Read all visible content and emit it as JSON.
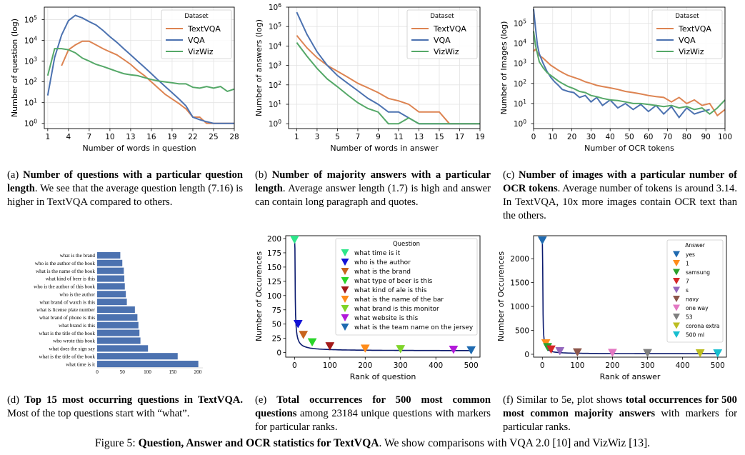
{
  "figure_caption": {
    "label": "Figure 5:",
    "bold": "Question, Answer and OCR statistics for TextVQA",
    "rest": ". We show comparisons with VQA 2.0 [10] and VizWiz [13]."
  },
  "captions": {
    "a": {
      "label": "(a)",
      "bold": "Number of questions with a particular question length",
      "rest": ". We see that the average question length (7.16) is higher in TextVQA compared to others."
    },
    "b": {
      "label": "(b)",
      "bold": "Number of majority answers with a particular length",
      "rest": ". Average answer length (1.7) is high and answer can contain long paragraph and quotes."
    },
    "c": {
      "label": "(c)",
      "bold": "Number of images with a particular number of OCR tokens",
      "rest": ". Average number of tokens is around 3.14. In TextVQA, 10x more images contain OCR text than the others."
    },
    "d": {
      "label": "(d)",
      "bold": "Top 15 most occurring questions in TextVQA.",
      "rest": " Most of the top questions start with “what”."
    },
    "e": {
      "label": "(e)",
      "bold": "Total occurrences for 500 most common questions",
      "rest": " among 23184 unique questions with markers for particular ranks."
    },
    "f": {
      "label": "(f)",
      "pre": " Similar to 5e, plot shows ",
      "bold": "total occurrences for 500 most common majority answers",
      "rest": " with markers for particular ranks."
    }
  },
  "colors": {
    "TextVQA": "#dd8452",
    "VQA": "#4c72b0",
    "VizWiz": "#55a868"
  },
  "chart_data": [
    {
      "id": "a",
      "type": "line",
      "xlabel": "Number of words in question",
      "ylabel": "Number of question (log)",
      "log_y": true,
      "xlim": [
        0.5,
        28
      ],
      "ylim_exp": [
        -0.25,
        5.6
      ],
      "xticks": [
        1,
        4,
        7,
        10,
        13,
        16,
        19,
        22,
        25,
        28
      ],
      "yticks_exp": [
        0,
        1,
        2,
        3,
        4,
        5
      ],
      "grid": true,
      "legend": {
        "title": "Dataset",
        "position": "top-right",
        "entries": [
          "TextVQA",
          "VQA",
          "VizWiz"
        ]
      },
      "series": [
        {
          "name": "TextVQA",
          "x": [
            3,
            4,
            5,
            6,
            7,
            8,
            9,
            10,
            11,
            12,
            13,
            14,
            15,
            16,
            17,
            18,
            19,
            20,
            21,
            22,
            23,
            24,
            25,
            26,
            27,
            28
          ],
          "y": [
            600,
            3500,
            6000,
            9000,
            9000,
            6000,
            4000,
            2800,
            2000,
            1200,
            700,
            350,
            200,
            100,
            50,
            25,
            15,
            9,
            5,
            2,
            2,
            1,
            1,
            1,
            1,
            1
          ]
        },
        {
          "name": "VQA",
          "x": [
            1,
            2,
            3,
            4,
            5,
            6,
            7,
            8,
            9,
            10,
            11,
            12,
            13,
            14,
            15,
            16,
            17,
            18,
            19,
            20,
            21,
            22,
            23,
            24,
            25,
            26,
            27,
            28
          ],
          "y": [
            22,
            1500,
            18000,
            90000,
            160000,
            120000,
            80000,
            55000,
            30000,
            15000,
            8000,
            4000,
            2000,
            1000,
            500,
            250,
            120,
            60,
            30,
            15,
            7,
            2,
            1.5,
            1.2,
            1,
            1,
            1,
            1
          ]
        },
        {
          "name": "VizWiz",
          "x": [
            1,
            2,
            3,
            4,
            5,
            6,
            7,
            8,
            9,
            10,
            11,
            12,
            13,
            14,
            15,
            16,
            17,
            18,
            19,
            20,
            21,
            22,
            23,
            24,
            25,
            26,
            27,
            28
          ],
          "y": [
            200,
            4000,
            4000,
            3500,
            2500,
            1400,
            1000,
            700,
            550,
            420,
            320,
            250,
            220,
            200,
            160,
            130,
            110,
            100,
            90,
            80,
            80,
            55,
            50,
            60,
            50,
            60,
            35,
            45
          ]
        }
      ]
    },
    {
      "id": "b",
      "type": "line",
      "xlabel": "Number of words in answer",
      "ylabel": "Number of answers (log)",
      "log_y": true,
      "xlim": [
        0.2,
        19
      ],
      "ylim_exp": [
        -0.25,
        6
      ],
      "xticks": [
        1,
        3,
        5,
        7,
        9,
        11,
        13,
        15,
        17,
        19
      ],
      "yticks_exp": [
        0,
        1,
        2,
        3,
        4,
        5,
        6
      ],
      "grid": true,
      "legend": {
        "title": "Dataset",
        "position": "top-right",
        "entries": [
          "TextVQA",
          "VQA",
          "VizWiz"
        ]
      },
      "series": [
        {
          "name": "TextVQA",
          "x": [
            1,
            2,
            3,
            4,
            5,
            6,
            7,
            8,
            9,
            10,
            11,
            12,
            13,
            14,
            15,
            16,
            17,
            18,
            19
          ],
          "y": [
            35000,
            8000,
            2500,
            1000,
            500,
            250,
            120,
            70,
            40,
            20,
            15,
            10,
            4,
            4,
            4,
            1,
            1,
            1,
            1
          ]
        },
        {
          "name": "VQA",
          "x": [
            1,
            2,
            3,
            4,
            5,
            6,
            7,
            8,
            9,
            10,
            11,
            12,
            13,
            14,
            15,
            16,
            17,
            18,
            19
          ],
          "y": [
            550000,
            40000,
            5000,
            1000,
            300,
            120,
            50,
            20,
            10,
            4,
            4,
            2,
            1,
            1,
            1,
            1,
            1,
            1,
            1
          ]
        },
        {
          "name": "VizWiz",
          "x": [
            1,
            2,
            3,
            4,
            5,
            6,
            7,
            8,
            9,
            10,
            11,
            12,
            13,
            14,
            15,
            16,
            17,
            18,
            19
          ],
          "y": [
            15000,
            3000,
            700,
            200,
            80,
            30,
            12,
            6,
            4,
            1,
            1,
            2,
            1,
            1,
            1,
            1,
            1,
            1,
            1
          ]
        }
      ]
    },
    {
      "id": "c",
      "type": "line",
      "xlabel": "Number of OCR tokens",
      "ylabel": "Number of Images (log)",
      "log_y": true,
      "xlim": [
        0,
        100
      ],
      "ylim_exp": [
        -0.25,
        5.8
      ],
      "xticks": [
        0,
        10,
        20,
        30,
        40,
        50,
        60,
        70,
        80,
        90,
        100
      ],
      "yticks_exp": [
        0,
        1,
        2,
        3,
        4,
        5
      ],
      "grid": true,
      "legend": {
        "title": "Dataset",
        "position": "top-right",
        "entries": [
          "TextVQA",
          "VQA",
          "VizWiz"
        ]
      },
      "series": [
        {
          "name": "TextVQA",
          "x": [
            0,
            1,
            2,
            3,
            5,
            7,
            9,
            11,
            13,
            15,
            18,
            21,
            24,
            27,
            30,
            33,
            36,
            40,
            44,
            48,
            52,
            56,
            60,
            64,
            68,
            72,
            76,
            80,
            84,
            88,
            92,
            96,
            100
          ],
          "y": [
            4000,
            5000,
            3500,
            2500,
            1800,
            1200,
            800,
            600,
            450,
            350,
            250,
            200,
            160,
            120,
            100,
            80,
            70,
            60,
            50,
            40,
            35,
            30,
            25,
            22,
            20,
            12,
            20,
            10,
            15,
            8,
            10,
            2.5,
            5
          ]
        },
        {
          "name": "VQA",
          "x": [
            0,
            1,
            2,
            3,
            5,
            7,
            9,
            11,
            13,
            15,
            18,
            21,
            24,
            27,
            30,
            33,
            36,
            40,
            44,
            48,
            52,
            56,
            60,
            64,
            68,
            72,
            76,
            80,
            84,
            88,
            92
          ],
          "y": [
            500000,
            60000,
            8000,
            3000,
            1000,
            400,
            200,
            120,
            80,
            50,
            40,
            35,
            20,
            25,
            12,
            20,
            8,
            15,
            6,
            10,
            5,
            9,
            4,
            8,
            3,
            7,
            2,
            6,
            3,
            4,
            5
          ]
        },
        {
          "name": "VizWiz",
          "x": [
            0,
            1,
            2,
            3,
            5,
            7,
            9,
            11,
            13,
            15,
            18,
            21,
            24,
            27,
            30,
            33,
            36,
            40,
            44,
            48,
            52,
            56,
            60,
            64,
            68,
            72,
            76,
            80,
            84,
            88,
            92,
            96,
            100
          ],
          "y": [
            40000,
            8000,
            3000,
            1200,
            600,
            350,
            250,
            180,
            130,
            100,
            70,
            55,
            40,
            35,
            25,
            22,
            18,
            15,
            14,
            12,
            10,
            10,
            9,
            8,
            7,
            8,
            6,
            7,
            5,
            6,
            3,
            6,
            15
          ]
        }
      ]
    },
    {
      "id": "d",
      "type": "bar",
      "orientation": "horizontal",
      "categories": [
        "what is the brand",
        "who is the author of the book",
        "what is the name of the book",
        "what kind of beer is this",
        "who is the author of this book",
        "who is the author",
        "what brand of watch is this",
        "what is license plate number",
        "what brand of phone is this",
        "what brand is this",
        "what is the title of the book",
        "who wrote this book",
        "what does the sign say",
        "what is the title of the book",
        "what time is it"
      ],
      "values": [
        46,
        50,
        53,
        54,
        55,
        57,
        59,
        75,
        80,
        82,
        84,
        86,
        101,
        160,
        201
      ],
      "xticks": [
        0,
        50,
        100,
        150,
        200
      ],
      "xlim": [
        0,
        210
      ],
      "color": "#4c72b0"
    },
    {
      "id": "e",
      "type": "line",
      "xlabel": "Rank of question",
      "ylabel": "Number of Occurences",
      "xlim": [
        -25,
        525
      ],
      "ylim": [
        -8,
        205
      ],
      "xticks": [
        0,
        100,
        200,
        300,
        400,
        500
      ],
      "yticks": [
        0,
        25,
        50,
        75,
        100,
        125,
        150,
        175,
        200
      ],
      "grid": false,
      "curve": {
        "a": 180,
        "b": 0.95,
        "offset": 3,
        "start": 198
      },
      "legend": {
        "title": "Question",
        "position": "top-right",
        "entries": [
          {
            "label": "what time is it",
            "color": "#2ee58a",
            "x": 0,
            "y": 198
          },
          {
            "label": "who is the author",
            "color": "#1212d6",
            "x": 10,
            "y": 50
          },
          {
            "label": "what is the brand",
            "color": "#c8641e",
            "x": 25,
            "y": 31
          },
          {
            "label": "what type of beer is this",
            "color": "#2ad52a",
            "x": 50,
            "y": 18
          },
          {
            "label": "what kind of ale is this",
            "color": "#a31a1a",
            "x": 100,
            "y": 11
          },
          {
            "label": "what is the name of the bar",
            "color": "#ff8c1a",
            "x": 200,
            "y": 7
          },
          {
            "label": "what brand is this monitor",
            "color": "#7fd42a",
            "x": 300,
            "y": 6
          },
          {
            "label": "what website is this",
            "color": "#b21ad9",
            "x": 450,
            "y": 5
          },
          {
            "label": "what is the team name on the jersey",
            "color": "#1f6ab0",
            "x": 500,
            "y": 4
          }
        ]
      }
    },
    {
      "id": "f",
      "type": "line",
      "xlabel": "Rank of answer",
      "ylabel": "Number of Occurences",
      "xlim": [
        -25,
        525
      ],
      "ylim": [
        -60,
        2480
      ],
      "xticks": [
        0,
        100,
        200,
        300,
        400,
        500
      ],
      "yticks": [
        0,
        500,
        1000,
        1500,
        2000
      ],
      "grid": false,
      "curve": {
        "a": 1800,
        "b": 1.1,
        "offset": 10,
        "start": 2380
      },
      "legend": {
        "title": "Answer",
        "position": "top-right",
        "entries": [
          {
            "label": "yes",
            "color": "#1f6ab0",
            "x": 0,
            "y": 2380
          },
          {
            "label": "1",
            "color": "#ff8c1a",
            "x": 10,
            "y": 230
          },
          {
            "label": "samsung",
            "color": "#2ca02c",
            "x": 15,
            "y": 150
          },
          {
            "label": "7",
            "color": "#d62728",
            "x": 25,
            "y": 100
          },
          {
            "label": "s",
            "color": "#9467bd",
            "x": 50,
            "y": 65
          },
          {
            "label": "navy",
            "color": "#8c564b",
            "x": 100,
            "y": 40
          },
          {
            "label": "one way",
            "color": "#e377c2",
            "x": 200,
            "y": 30
          },
          {
            "label": "53",
            "color": "#7f7f7f",
            "x": 300,
            "y": 25
          },
          {
            "label": "corona extra",
            "color": "#bcbd22",
            "x": 450,
            "y": 20
          },
          {
            "label": "500 ml",
            "color": "#17becf",
            "x": 500,
            "y": 18
          }
        ]
      }
    }
  ]
}
